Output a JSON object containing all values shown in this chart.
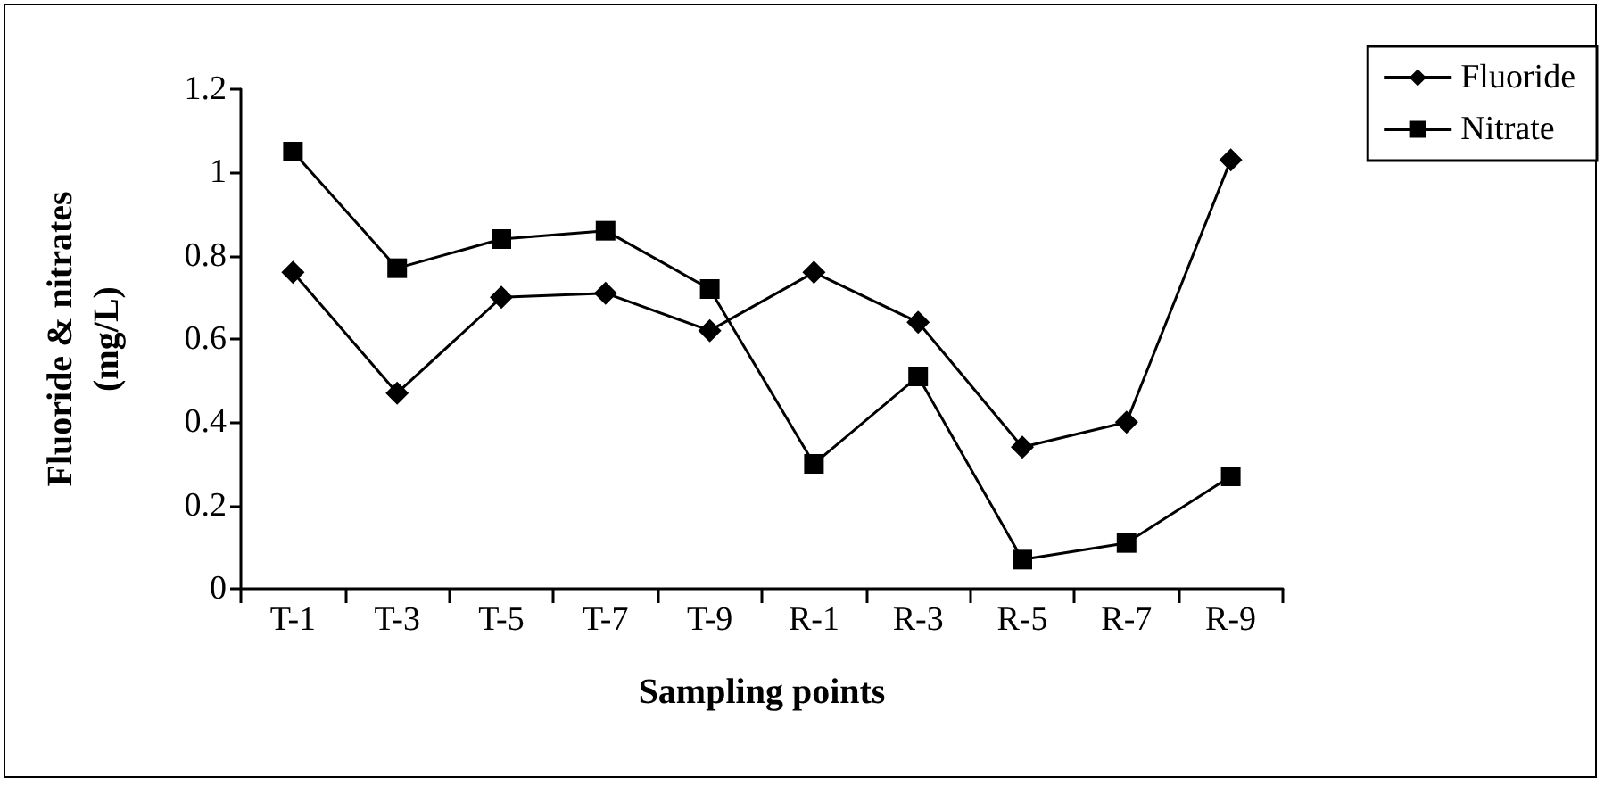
{
  "chart_data": {
    "type": "line",
    "xlabel": "Sampling points",
    "ylabel": "Fluoride & nitrates\n(mg/L)",
    "categories": [
      "T-1",
      "T-3",
      "T-5",
      "T-7",
      "T-9",
      "R-1",
      "R-3",
      "R-5",
      "R-7",
      "R-9"
    ],
    "series": [
      {
        "name": "Fluoride",
        "color": "#000000",
        "marker": "diamond",
        "values": [
          0.76,
          0.47,
          0.7,
          0.71,
          0.62,
          0.76,
          0.64,
          0.34,
          0.4,
          1.03
        ]
      },
      {
        "name": "Nitrate",
        "color": "#000000",
        "marker": "square",
        "values": [
          1.05,
          0.77,
          0.84,
          0.86,
          0.72,
          0.3,
          0.51,
          0.07,
          0.11,
          0.27
        ]
      }
    ],
    "ylim": [
      0,
      1.2
    ],
    "yticks": [
      0,
      0.2,
      0.4,
      0.6,
      0.8,
      1,
      1.2
    ],
    "grid": false,
    "legend": "top right",
    "line_style": "solid"
  }
}
